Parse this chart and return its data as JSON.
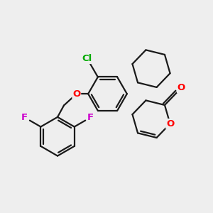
{
  "background_color": "#eeeeee",
  "bond_color": "#1a1a1a",
  "bond_width": 1.6,
  "figsize": [
    3.0,
    3.0
  ],
  "dpi": 100,
  "xlim": [
    0,
    10
  ],
  "ylim": [
    0,
    10
  ],
  "cl_color": "#00aa00",
  "o_color": "#ff0000",
  "f_color": "#cc00cc",
  "label_fontsize": 9.5
}
